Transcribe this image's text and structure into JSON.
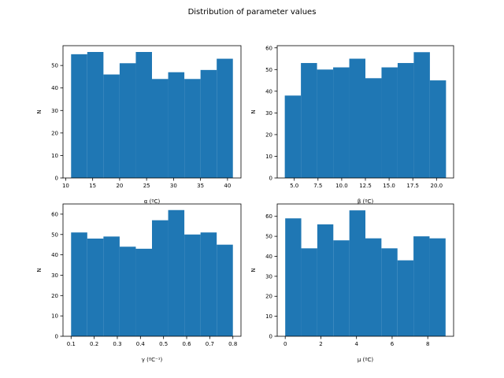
{
  "suptitle": "Distribution of parameter values",
  "colors": {
    "bar": "#1f77b4",
    "axis": "#000000",
    "background": "#ffffff"
  },
  "chart_data": [
    {
      "type": "bar",
      "subtype": "histogram",
      "xlabel": "α (ºC)",
      "ylabel": "N",
      "xlim": [
        9.5,
        42.5
      ],
      "ylim": [
        0,
        58.8
      ],
      "xticks": [
        10,
        15,
        20,
        25,
        30,
        35,
        40
      ],
      "xtick_labels": [
        "10",
        "15",
        "20",
        "25",
        "30",
        "35",
        "40"
      ],
      "yticks": [
        0,
        10,
        20,
        30,
        40,
        50
      ],
      "ytick_labels": [
        "0",
        "10",
        "20",
        "30",
        "40",
        "50"
      ],
      "bin_edges": [
        11,
        14,
        17,
        20,
        23,
        26,
        29,
        32,
        35,
        38,
        41
      ],
      "values": [
        55,
        56,
        46,
        51,
        56,
        44,
        47,
        44,
        48,
        53
      ],
      "grid": false
    },
    {
      "type": "bar",
      "subtype": "histogram",
      "xlabel": "β (ºC)",
      "ylabel": "N",
      "xlim": [
        3.2,
        21.8
      ],
      "ylim": [
        0,
        61
      ],
      "xticks": [
        5.0,
        7.5,
        10.0,
        12.5,
        15.0,
        17.5,
        20.0
      ],
      "xtick_labels": [
        "5.0",
        "7.5",
        "10.0",
        "12.5",
        "15.0",
        "17.5",
        "20.0"
      ],
      "yticks": [
        0,
        10,
        20,
        30,
        40,
        50,
        60
      ],
      "ytick_labels": [
        "0",
        "10",
        "20",
        "30",
        "40",
        "50",
        "60"
      ],
      "bin_edges": [
        4.0,
        5.7,
        7.4,
        9.1,
        10.8,
        12.5,
        14.2,
        15.9,
        17.6,
        19.3,
        21.0
      ],
      "values": [
        38,
        53,
        50,
        51,
        55,
        46,
        51,
        53,
        58,
        45
      ],
      "grid": false
    },
    {
      "type": "bar",
      "subtype": "histogram",
      "xlabel": "γ (ºC⁻¹)",
      "ylabel": "N",
      "xlim": [
        0.065,
        0.835
      ],
      "ylim": [
        0,
        65
      ],
      "xticks": [
        0.1,
        0.2,
        0.3,
        0.4,
        0.5,
        0.6,
        0.7,
        0.8
      ],
      "xtick_labels": [
        "0.1",
        "0.2",
        "0.3",
        "0.4",
        "0.5",
        "0.6",
        "0.7",
        "0.8"
      ],
      "yticks": [
        0,
        10,
        20,
        30,
        40,
        50,
        60
      ],
      "ytick_labels": [
        "0",
        "10",
        "20",
        "30",
        "40",
        "50",
        "60"
      ],
      "bin_edges": [
        0.1,
        0.17,
        0.24,
        0.31,
        0.38,
        0.45,
        0.52,
        0.59,
        0.66,
        0.73,
        0.8
      ],
      "values": [
        51,
        48,
        49,
        44,
        43,
        57,
        62,
        50,
        51,
        45
      ],
      "grid": false
    },
    {
      "type": "bar",
      "subtype": "histogram",
      "xlabel": "μ (ºC)",
      "ylabel": "N",
      "xlim": [
        -0.45,
        9.45
      ],
      "ylim": [
        0,
        66.2
      ],
      "xticks": [
        0,
        2,
        4,
        6,
        8
      ],
      "xtick_labels": [
        "0",
        "2",
        "4",
        "6",
        "8"
      ],
      "yticks": [
        0,
        10,
        20,
        30,
        40,
        50,
        60
      ],
      "ytick_labels": [
        "0",
        "10",
        "20",
        "30",
        "40",
        "50",
        "60"
      ],
      "bin_edges": [
        0,
        0.9,
        1.8,
        2.7,
        3.6,
        4.5,
        5.4,
        6.3,
        7.2,
        8.1,
        9.0
      ],
      "values": [
        59,
        44,
        56,
        48,
        63,
        49,
        44,
        38,
        50,
        49
      ],
      "grid": false
    }
  ]
}
